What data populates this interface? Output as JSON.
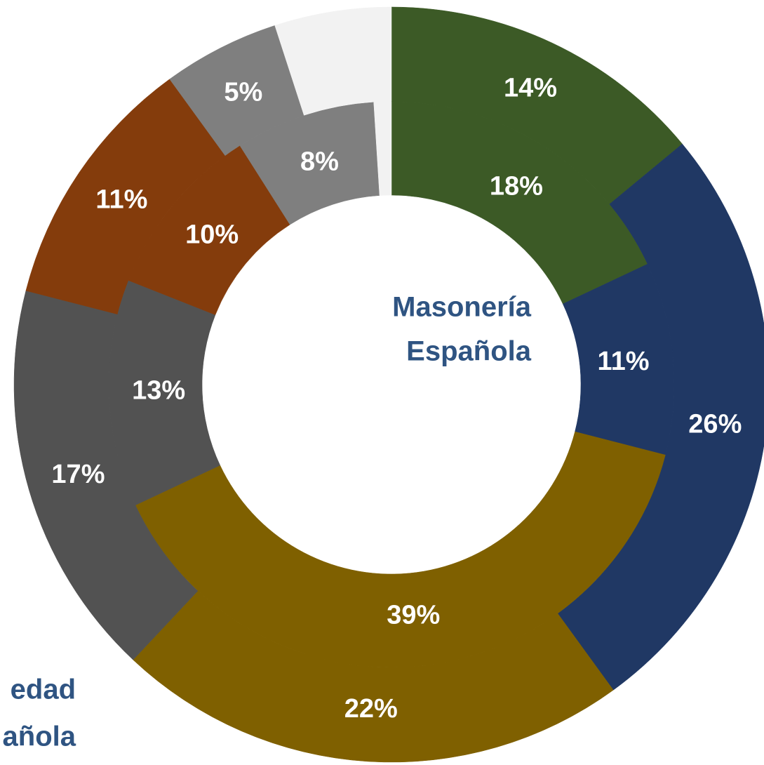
{
  "chart_data": {
    "type": "donut",
    "center_label": [
      "Masonería",
      "Española"
    ],
    "annotation": [
      "edad",
      "añola"
    ],
    "series": [
      {
        "values": [
          14,
          26,
          22,
          17,
          11,
          5,
          5
        ],
        "value_labels": [
          "14%",
          "26%",
          "22%",
          "17%",
          "11%",
          "5%",
          null
        ],
        "colors": [
          "#3c5a26",
          "#203864",
          "#7f6000",
          "#525252",
          "#843c0c",
          "#7f7f7f",
          "#f2f2f2"
        ]
      },
      {
        "values": [
          18,
          11,
          39,
          13,
          10,
          8,
          1
        ],
        "value_labels": [
          "18%",
          "11%",
          "39%",
          "13%",
          "10%",
          "8%",
          null
        ],
        "colors": [
          "#3c5a26",
          "#203864",
          "#7f6000",
          "#525252",
          "#843c0c",
          "#7f7f7f",
          "#f2f2f2"
        ]
      }
    ]
  }
}
